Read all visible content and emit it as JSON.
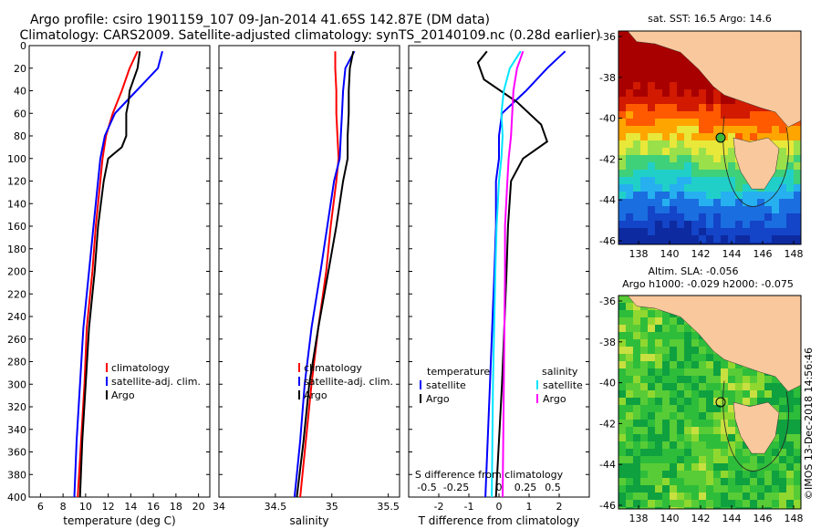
{
  "title": {
    "line1": "Argo profile: csiro 1901159_107 09-Jan-2014 41.65S 142.87E (DM data)",
    "line2": "Climatology: CARS2009. Satellite-adjusted climatology: synTS_20140109.nc (0.28d earlier)"
  },
  "colors": {
    "climatology": "#ff0000",
    "satellite": "#0000ff",
    "argo": "#000000",
    "sat_s": "#00e5ff",
    "argo_s": "#ff00ff",
    "land": "#f9c89c"
  },
  "chart_data": [
    {
      "type": "line",
      "name": "temperature",
      "xlabel": "temperature (deg C)",
      "ylim": [
        0,
        400
      ],
      "xlim": [
        5,
        21
      ],
      "xticks": [
        6,
        8,
        10,
        12,
        14,
        16,
        18,
        20
      ],
      "yticks": [
        0,
        20,
        40,
        60,
        80,
        100,
        120,
        140,
        160,
        180,
        200,
        220,
        240,
        260,
        280,
        300,
        320,
        340,
        360,
        380,
        400
      ],
      "legend": [
        "climatology",
        "satellite-adj. clim.",
        "Argo"
      ],
      "series": [
        {
          "name": "climatology",
          "color": "#ff0000",
          "depth": [
            5,
            20,
            40,
            60,
            80,
            100,
            120,
            160,
            200,
            250,
            300,
            350,
            400
          ],
          "values": [
            14.6,
            13.9,
            13.2,
            12.4,
            11.8,
            11.5,
            11.3,
            10.9,
            10.6,
            10.1,
            9.9,
            9.6,
            9.3
          ]
        },
        {
          "name": "satellite-adj. clim.",
          "color": "#0000ff",
          "depth": [
            5,
            20,
            40,
            60,
            80,
            100,
            120,
            160,
            200,
            250,
            300,
            350,
            400
          ],
          "values": [
            16.8,
            16.4,
            14.5,
            12.6,
            11.7,
            11.3,
            11.1,
            10.7,
            10.3,
            9.8,
            9.5,
            9.2,
            9.0
          ]
        },
        {
          "name": "Argo",
          "color": "#000000",
          "depth": [
            5,
            20,
            40,
            50,
            60,
            80,
            90,
            100,
            120,
            160,
            200,
            250,
            300,
            350,
            400
          ],
          "values": [
            14.8,
            14.6,
            13.9,
            13.8,
            13.6,
            13.6,
            13.2,
            12.0,
            11.6,
            11.1,
            10.8,
            10.3,
            10.0,
            9.7,
            9.5
          ]
        }
      ]
    },
    {
      "type": "line",
      "name": "salinity",
      "xlabel": "salinity",
      "ylim": [
        0,
        400
      ],
      "xlim": [
        34,
        35.6
      ],
      "xticks": [
        "34",
        "34.5",
        "35",
        "35.5"
      ],
      "legend": [
        "climatology",
        "satellite-adj. clim.",
        "Argo"
      ],
      "series": [
        {
          "name": "climatology",
          "color": "#ff0000",
          "depth": [
            5,
            20,
            40,
            60,
            80,
            100,
            120,
            160,
            200,
            250,
            300,
            350,
            400
          ],
          "values": [
            35.03,
            35.03,
            35.04,
            35.04,
            35.05,
            35.06,
            35.04,
            34.99,
            34.95,
            34.88,
            34.82,
            34.77,
            34.72
          ]
        },
        {
          "name": "satellite-adj. clim.",
          "color": "#0000ff",
          "depth": [
            5,
            20,
            40,
            60,
            80,
            100,
            120,
            160,
            200,
            250,
            300,
            350,
            400
          ],
          "values": [
            35.2,
            35.12,
            35.1,
            35.09,
            35.08,
            35.07,
            35.02,
            34.96,
            34.9,
            34.82,
            34.76,
            34.72,
            34.67
          ]
        },
        {
          "name": "Argo",
          "color": "#000000",
          "depth": [
            5,
            20,
            40,
            60,
            80,
            100,
            120,
            160,
            200,
            250,
            300,
            350,
            400
          ],
          "values": [
            35.19,
            35.16,
            35.15,
            35.15,
            35.14,
            35.14,
            35.1,
            35.04,
            34.97,
            34.88,
            34.8,
            34.75,
            34.69
          ]
        }
      ]
    },
    {
      "type": "line",
      "name": "difference",
      "xlabel": "T difference from climatology",
      "xlabel2": "S difference from climatology",
      "ylim": [
        0,
        400
      ],
      "xlim": [
        -3,
        3
      ],
      "xticks": [
        "-2",
        "-1",
        "0",
        "1",
        "2"
      ],
      "xticks_top": [
        "-0.5",
        "-0.25",
        "0",
        "0.25",
        "0.5"
      ],
      "legend_header_left": "temperature",
      "legend_header_right": "salinity",
      "legend_left": [
        "satellite",
        "Argo"
      ],
      "legend_right": [
        "satellite",
        "Argo"
      ],
      "series": [
        {
          "name": "T satellite",
          "color": "#0000ff",
          "depth": [
            5,
            20,
            40,
            60,
            80,
            100,
            120,
            160,
            200,
            300,
            400
          ],
          "values": [
            2.2,
            1.6,
            0.9,
            0.1,
            0.0,
            0.0,
            -0.1,
            -0.1,
            -0.15,
            -0.3,
            -0.45
          ]
        },
        {
          "name": "T Argo",
          "color": "#000000",
          "depth": [
            5,
            15,
            30,
            50,
            70,
            85,
            100,
            120,
            160,
            200,
            300,
            400
          ],
          "values": [
            -0.4,
            -0.7,
            -0.5,
            0.6,
            1.4,
            1.6,
            0.8,
            0.4,
            0.3,
            0.25,
            0.1,
            -0.1
          ]
        },
        {
          "name": "S satellite",
          "color": "#00e5ff",
          "depth": [
            5,
            20,
            40,
            60,
            80,
            100,
            120,
            160,
            200,
            300,
            400
          ],
          "values": [
            0.18,
            0.09,
            0.04,
            0.02,
            0.03,
            0.02,
            0.0,
            -0.02,
            -0.03,
            -0.05,
            -0.06
          ]
        },
        {
          "name": "S Argo",
          "color": "#ff00ff",
          "depth": [
            5,
            20,
            40,
            60,
            80,
            100,
            120,
            160,
            200,
            300,
            400
          ],
          "values": [
            0.2,
            0.15,
            0.12,
            0.11,
            0.1,
            0.08,
            0.07,
            0.05,
            0.05,
            0.04,
            0.03
          ]
        }
      ]
    }
  ],
  "map_sst": {
    "title": "sat. SST: 16.5 Argo: 14.6",
    "yticks": [
      "-36",
      "-38",
      "-40",
      "-42",
      "-44",
      "-46"
    ],
    "xticks": [
      "138",
      "140",
      "142",
      "144",
      "146",
      "148"
    ]
  },
  "map_sla": {
    "title1": "Altim. SLA: -0.056",
    "title2": "Argo h1000: -0.029 h2000: -0.075",
    "yticks": [
      "-36",
      "-38",
      "-40",
      "-42",
      "-44",
      "-46"
    ],
    "xticks": [
      "138",
      "140",
      "142",
      "144",
      "146",
      "148"
    ],
    "watermark": "©IMOS 13-Dec-2018 14:56:46"
  }
}
